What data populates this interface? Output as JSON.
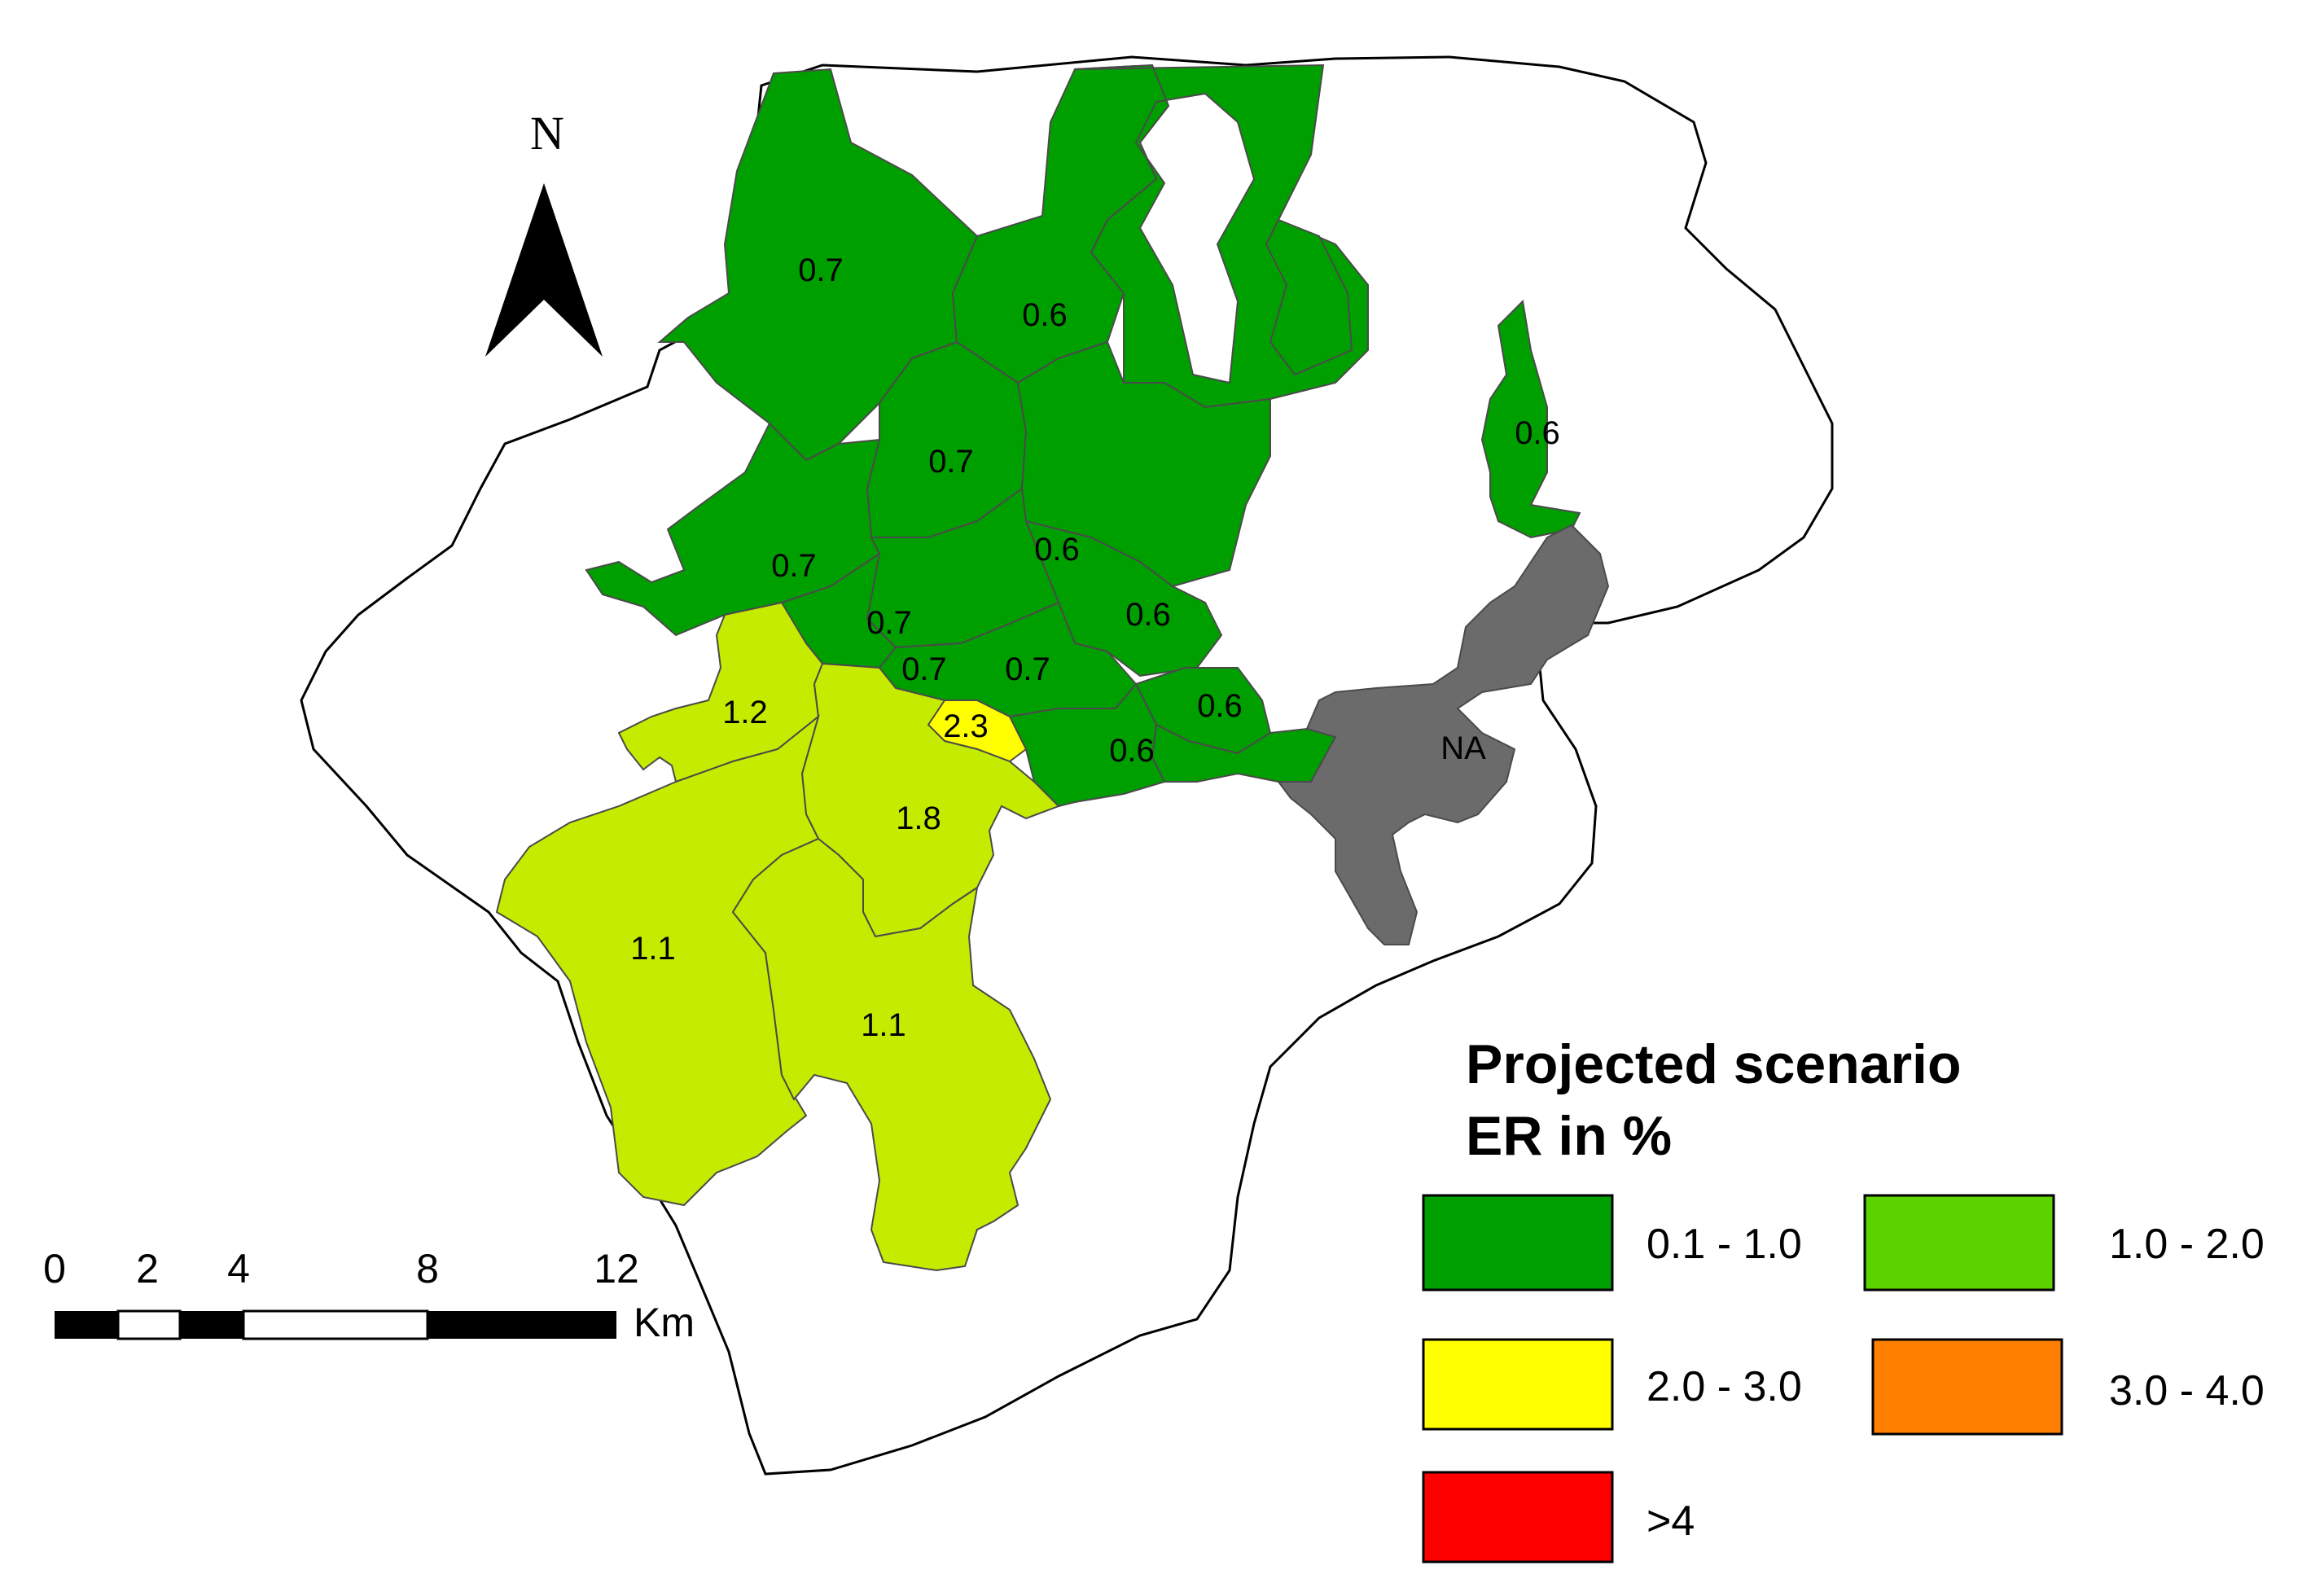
{
  "north_label": "N",
  "colors": {
    "class_0_1_1_0": "#009f00",
    "class_1_0_2_0": "#5dd400",
    "class_2_0_3_0": "#ffff00",
    "class_3_0_4_0": "#ff8000",
    "class_gt4": "#ff0000",
    "observed_1_0_2_0": "#c5eb00",
    "na": "#6b6b6b"
  },
  "regions": [
    {
      "label": "0.7",
      "class": "class_0_1_1_0"
    },
    {
      "label": "0.6",
      "class": "class_0_1_1_0"
    },
    {
      "label": "0.7",
      "class": "class_0_1_1_0"
    },
    {
      "label": "0.6",
      "class": "class_0_1_1_0"
    },
    {
      "label": "0.7",
      "class": "class_0_1_1_0"
    },
    {
      "label": "0.6",
      "class": "class_0_1_1_0"
    },
    {
      "label": "0.6",
      "class": "class_0_1_1_0"
    },
    {
      "label": "0.7",
      "class": "class_0_1_1_0"
    },
    {
      "label": "0.7",
      "class": "class_0_1_1_0"
    },
    {
      "label": "0.7",
      "class": "class_0_1_1_0"
    },
    {
      "label": "0.6",
      "class": "class_0_1_1_0"
    },
    {
      "label": "0.6",
      "class": "class_0_1_1_0"
    },
    {
      "label": "1.2",
      "class": "observed_1_0_2_0"
    },
    {
      "label": "2.3",
      "class": "class_2_0_3_0"
    },
    {
      "label": "1.8",
      "class": "observed_1_0_2_0"
    },
    {
      "label": "1.1",
      "class": "observed_1_0_2_0"
    },
    {
      "label": "1.1",
      "class": "observed_1_0_2_0"
    },
    {
      "label": "NA",
      "class": "na"
    }
  ],
  "scale_bar": {
    "ticks": [
      "0",
      "2",
      "4",
      "8",
      "12"
    ],
    "unit": "Km"
  },
  "legend": {
    "title_line1": "Projected scenario",
    "title_line2": "ER in %",
    "items": [
      {
        "label": "0.1 - 1.0",
        "color": "#009f00"
      },
      {
        "label": "1.0 - 2.0",
        "color": "#5dd400"
      },
      {
        "label": "2.0 - 3.0",
        "color": "#ffff00"
      },
      {
        "label": "3.0 - 4.0",
        "color": "#ff8000"
      },
      {
        "label": ">4",
        "color": "#ff0000"
      }
    ]
  }
}
